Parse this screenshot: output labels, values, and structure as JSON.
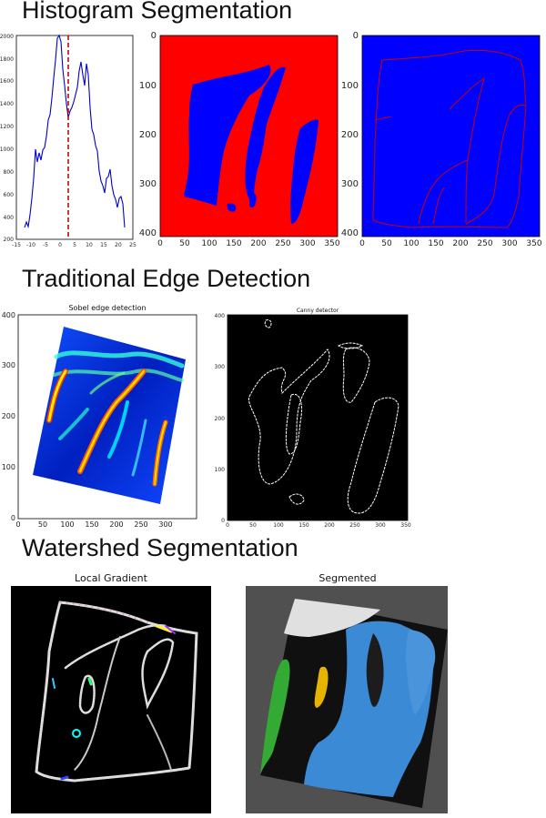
{
  "sections": {
    "histogram": {
      "title": "Histogram Segmentation"
    },
    "edge": {
      "title": "Traditional Edge Detection"
    },
    "watershed": {
      "title": "Watershed Segmentation"
    }
  },
  "histogram_plot": {
    "yticks": [
      "2000",
      "1800",
      "1600",
      "1400",
      "1200",
      "1000",
      "800",
      "600",
      "400",
      "200"
    ],
    "xticks": [
      "-15",
      "-10",
      "-5",
      "0",
      "5",
      "10",
      "15",
      "20",
      "25"
    ]
  },
  "seg_plot_1": {
    "yticks": [
      "0",
      "100",
      "200",
      "300",
      "400"
    ],
    "xticks": [
      "0",
      "50",
      "100",
      "150",
      "200",
      "250",
      "300",
      "350"
    ]
  },
  "seg_plot_2": {
    "yticks": [
      "0",
      "100",
      "200",
      "300",
      "400"
    ],
    "xticks": [
      "0",
      "50",
      "100",
      "150",
      "200",
      "250",
      "300",
      "350"
    ]
  },
  "sobel_plot": {
    "title": "Sobel edge detection",
    "yticks": [
      "400",
      "300",
      "200",
      "100",
      "0"
    ],
    "xticks": [
      "0",
      "50",
      "100",
      "150",
      "200",
      "250",
      "300"
    ]
  },
  "canny_plot": {
    "title": "Canny detector",
    "yticks": [
      "400",
      "300",
      "200",
      "100",
      "0"
    ],
    "xticks": [
      "0",
      "50",
      "100",
      "150",
      "200",
      "250",
      "300",
      "350"
    ]
  },
  "gradient_panel": {
    "title": "Local Gradient"
  },
  "segmented_panel": {
    "title": "Segmented"
  },
  "colors": {
    "red": "#ff0000",
    "blue": "#0000ff",
    "histline": "#0000cc",
    "threshold": "#cc0000",
    "segblue": "#3a8ad6",
    "seggray": "#505050",
    "seggreen": "#33aa33",
    "segyellow": "#e6b400"
  }
}
